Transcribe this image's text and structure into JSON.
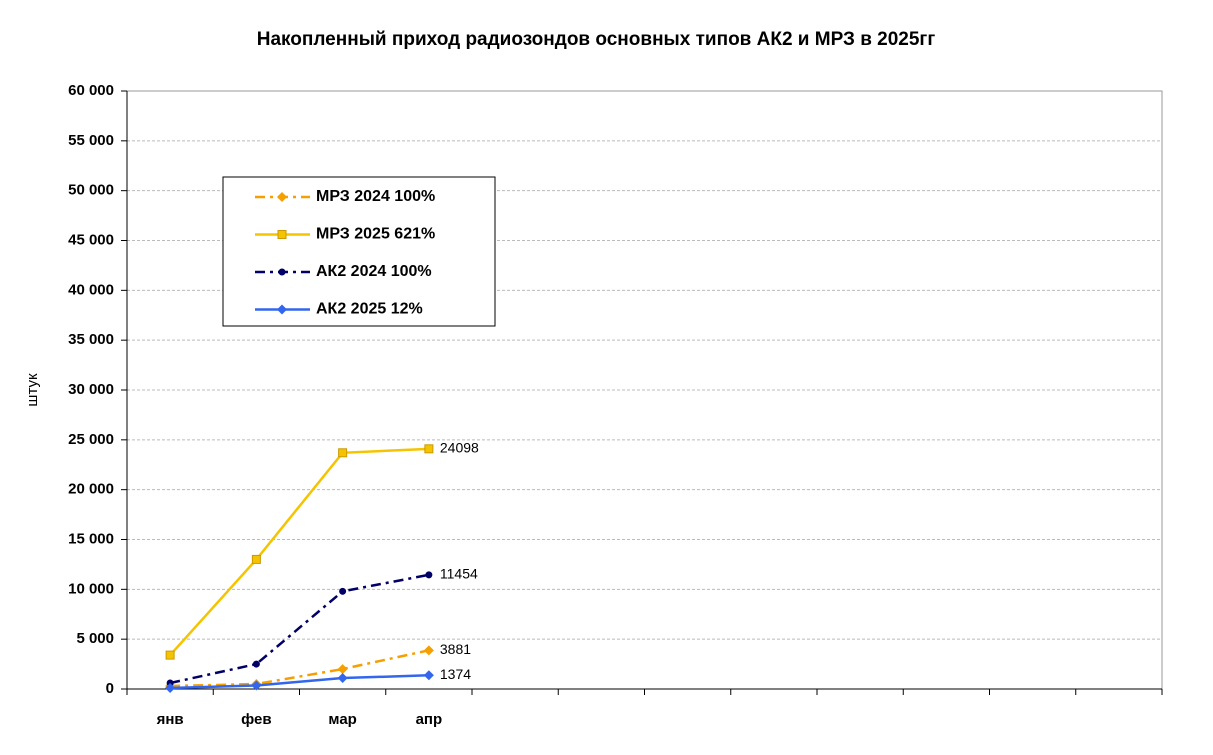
{
  "chart_data": {
    "type": "line",
    "title": "Накопленный приход радиозондов основных типов АК2 и МРЗ в 2025гг",
    "y_label": "штук",
    "categories": [
      "янв",
      "фев",
      "мар",
      "апр",
      null,
      null,
      null,
      null,
      null,
      null,
      null,
      null
    ],
    "series": [
      {
        "name": "МРЗ 2024 100%",
        "color": "#f5a000",
        "dash": true,
        "marker": "diamond",
        "values": [
          300,
          500,
          2000,
          3881,
          null,
          null,
          null,
          null,
          null,
          null,
          null,
          null
        ]
      },
      {
        "name": "МРЗ 2025 621%",
        "color": "#f5c400",
        "dash": false,
        "marker": "square",
        "values": [
          3400,
          13000,
          23700,
          24098,
          null,
          null,
          null,
          null,
          null,
          null,
          null,
          null
        ]
      },
      {
        "name": "АК2 2024 100%",
        "color": "#000066",
        "dash": true,
        "marker": "circle",
        "values": [
          600,
          2500,
          9800,
          11454,
          null,
          null,
          null,
          null,
          null,
          null,
          null,
          null
        ]
      },
      {
        "name": "АК2 2025 12%",
        "color": "#3366ee",
        "dash": false,
        "marker": "diamond",
        "values": [
          100,
          350,
          1100,
          1374,
          null,
          null,
          null,
          null,
          null,
          null,
          null,
          null
        ]
      }
    ],
    "ylim": [
      0,
      60000
    ],
    "yticks": [
      0,
      {
        "value": 5000,
        "label": "5 000"
      },
      {
        "value": 10000,
        "label": "10 000"
      },
      {
        "value": 15000,
        "label": "15 000"
      },
      {
        "value": 20000,
        "label": "20 000"
      },
      {
        "value": 25000,
        "label": "25 000"
      },
      {
        "value": 30000,
        "label": "30 000"
      },
      {
        "value": 35000,
        "label": "35 000"
      },
      {
        "value": 40000,
        "label": "40 000"
      },
      {
        "value": 45000,
        "label": "45 000"
      },
      {
        "value": 50000,
        "label": "50 000"
      },
      {
        "value": 55000,
        "label": "55 000"
      },
      {
        "value": 60000,
        "label": "60 000"
      }
    ],
    "grid": true
  }
}
